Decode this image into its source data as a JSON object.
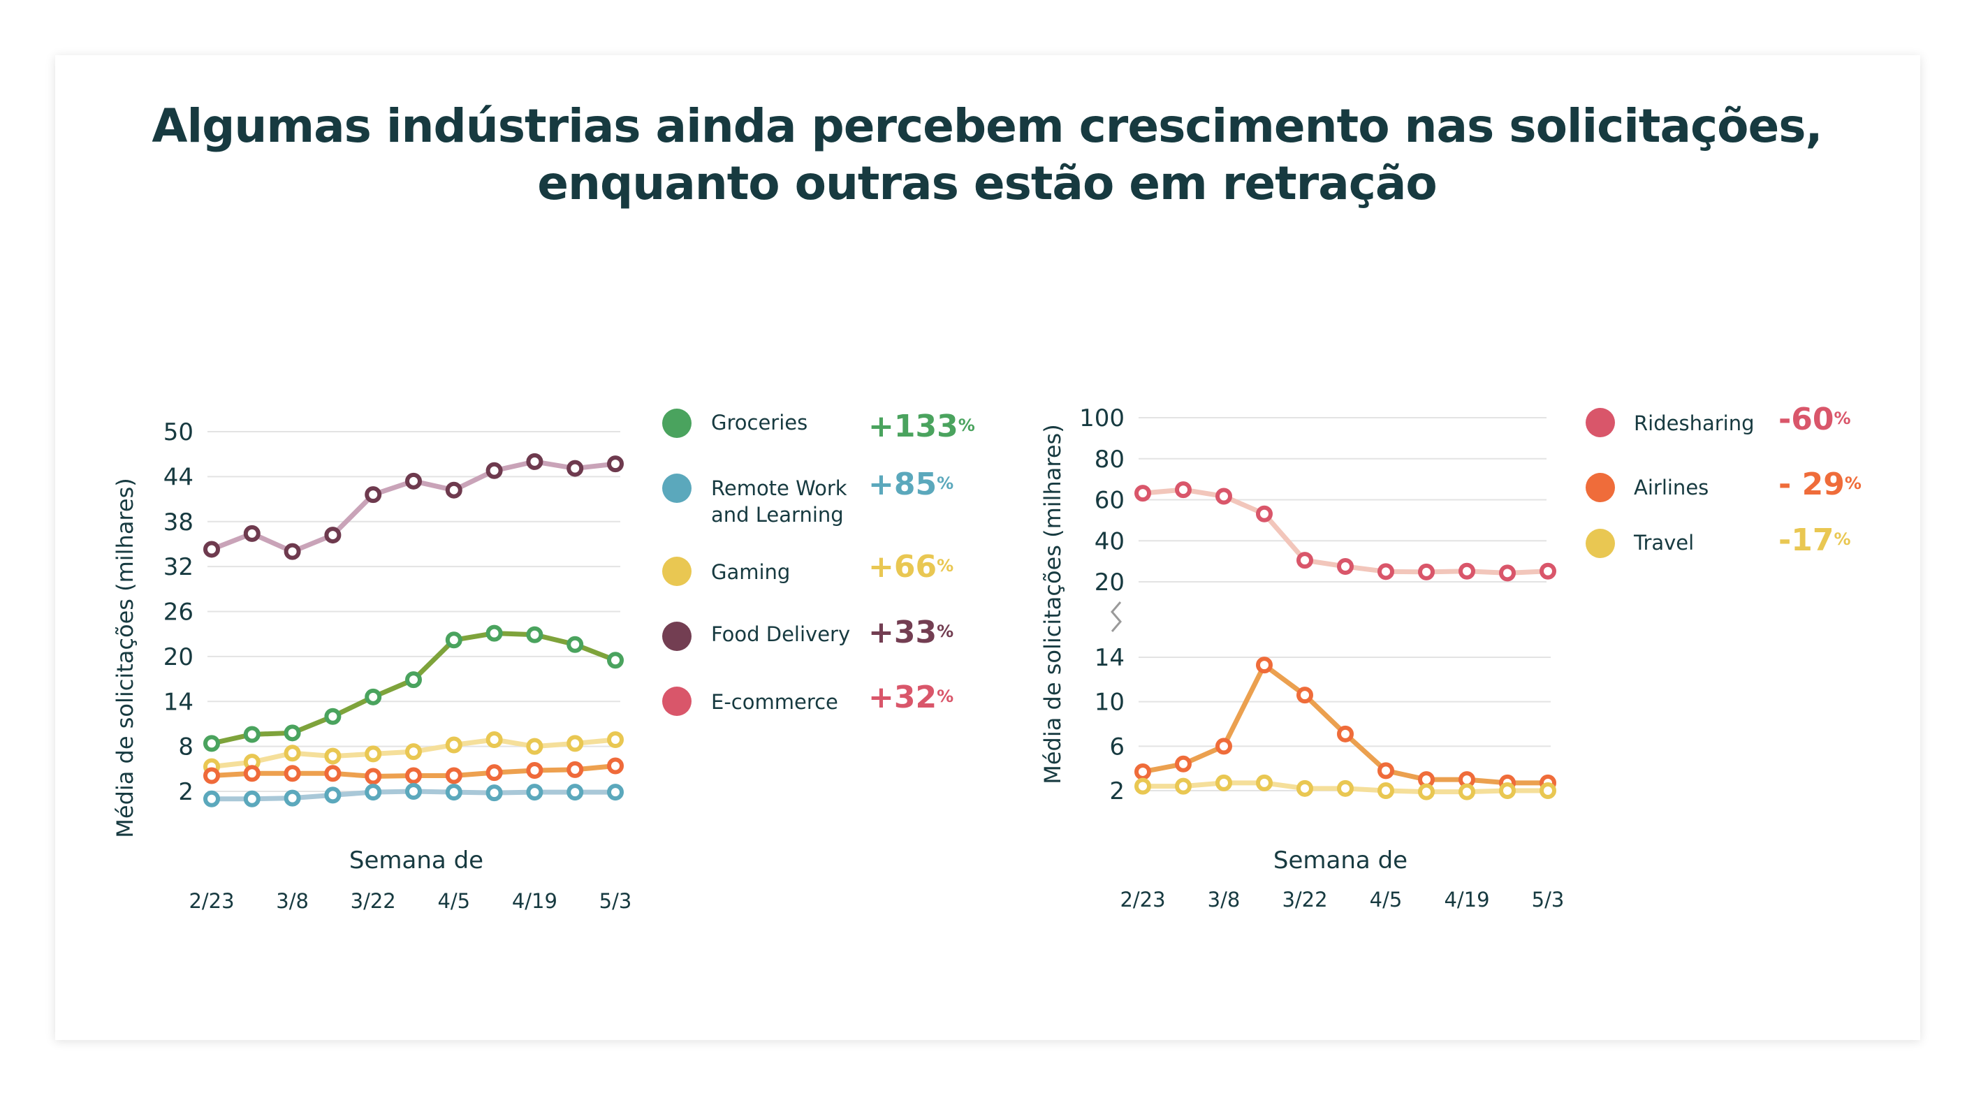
{
  "title": {
    "line1": "Algumas indústrias ainda percebem crescimento nas solicitações,",
    "line2": "enquanto outras estão em retração"
  },
  "chart_data": [
    {
      "type": "line",
      "ylabel": "Média de solicitações (milhares)",
      "xlabel": "Semana de",
      "x": [
        "2/23",
        "3/1",
        "3/8",
        "3/15",
        "3/22",
        "3/29",
        "4/5",
        "4/12",
        "4/19",
        "4/26",
        "5/3"
      ],
      "x_tick_labels": [
        "2/23",
        "3/8",
        "3/22",
        "4/5",
        "4/19",
        "5/3"
      ],
      "y_ticks": [
        50,
        44,
        38,
        32,
        26,
        20,
        14,
        8,
        2
      ],
      "ylim": [
        2,
        50
      ],
      "grid": true,
      "series": [
        {
          "name": "Food Delivery",
          "line_color": "#c9a3b8",
          "marker_color": "#6e3a4e",
          "values": [
            34.3,
            36.4,
            34.0,
            36.2,
            41.6,
            43.4,
            42.2,
            44.8,
            46.0,
            45.1,
            45.7
          ]
        },
        {
          "name": "Groceries",
          "line_color": "#7ea33b",
          "marker_color": "#4aa35e",
          "values": [
            8.4,
            9.6,
            9.8,
            12.0,
            14.6,
            16.9,
            22.2,
            23.1,
            22.9,
            21.6,
            19.5
          ]
        },
        {
          "name": "Gaming",
          "line_color": "#f5df9a",
          "marker_color": "#e9c752",
          "values": [
            5.3,
            5.9,
            7.1,
            6.7,
            7.0,
            7.3,
            8.2,
            8.9,
            8.0,
            8.4,
            8.9
          ]
        },
        {
          "name": "E-commerce",
          "line_color": "#eda04f",
          "marker_color": "#ef6a3a",
          "values": [
            4.1,
            4.4,
            4.4,
            4.4,
            4.0,
            4.1,
            4.1,
            4.5,
            4.8,
            4.9,
            5.4
          ]
        },
        {
          "name": "Remote Work and Learning",
          "line_color": "#a9c8d8",
          "marker_color": "#5ba8bc",
          "values": [
            1.0,
            1.0,
            1.1,
            1.5,
            1.9,
            2.0,
            1.9,
            1.8,
            1.9,
            1.9,
            1.9
          ]
        }
      ],
      "legend": [
        {
          "label": "Groceries",
          "color": "#4aa35e",
          "change": "+133",
          "unit": "%"
        },
        {
          "label": "Remote Work and Learning",
          "color": "#5ba8bc",
          "change": "+85",
          "unit": "%"
        },
        {
          "label": "Gaming",
          "color": "#e9c752",
          "change": "+66",
          "unit": "%"
        },
        {
          "label": "Food Delivery",
          "color": "#733e52",
          "change": "+33",
          "unit": "%"
        },
        {
          "label": "E-commerce",
          "color": "#d9566a",
          "change": "+32",
          "unit": "%"
        }
      ],
      "legend_placement": "right"
    },
    {
      "type": "line",
      "ylabel": "Média de solicitações (milhares)",
      "xlabel": "Semana de",
      "x": [
        "2/23",
        "3/1",
        "3/8",
        "3/15",
        "3/22",
        "3/29",
        "4/5",
        "4/12",
        "4/19",
        "4/26",
        "5/3"
      ],
      "x_tick_labels": [
        "2/23",
        "3/8",
        "3/22",
        "4/5",
        "4/19",
        "5/3"
      ],
      "broken_axis": true,
      "y_ticks_upper": [
        100,
        80,
        60,
        40,
        20
      ],
      "y_ticks_lower": [
        14,
        10,
        6,
        2
      ],
      "ylim_upper": [
        20,
        100
      ],
      "ylim_lower": [
        2,
        14
      ],
      "grid": true,
      "series": [
        {
          "name": "Ridesharing",
          "panel": "upper",
          "line_color": "#f2c6bb",
          "marker_color": "#d9566a",
          "values": [
            63.2,
            64.9,
            61.7,
            53.1,
            30.5,
            27.5,
            25.0,
            24.8,
            25.2,
            24.3,
            25.2
          ]
        },
        {
          "name": "Airlines",
          "panel": "lower",
          "line_color": "#eba04f",
          "marker_color": "#ef6c3a",
          "values": [
            3.7,
            4.4,
            6.0,
            13.3,
            10.6,
            7.1,
            3.8,
            3.0,
            3.0,
            2.7,
            2.7
          ]
        },
        {
          "name": "Travel",
          "panel": "lower",
          "line_color": "#f5df9a",
          "marker_color": "#e9c752",
          "values": [
            2.4,
            2.4,
            2.7,
            2.7,
            2.2,
            2.2,
            2.0,
            1.9,
            1.9,
            2.0,
            2.0
          ]
        }
      ],
      "legend": [
        {
          "label": "Ridesharing",
          "color": "#d9566a",
          "change": "-60",
          "unit": "%"
        },
        {
          "label": "Airlines",
          "color": "#ef6c3a",
          "change": "- 29",
          "unit": "%"
        },
        {
          "label": "Travel",
          "color": "#e9c752",
          "change": "-17",
          "unit": "%"
        }
      ],
      "legend_placement": "right"
    }
  ]
}
